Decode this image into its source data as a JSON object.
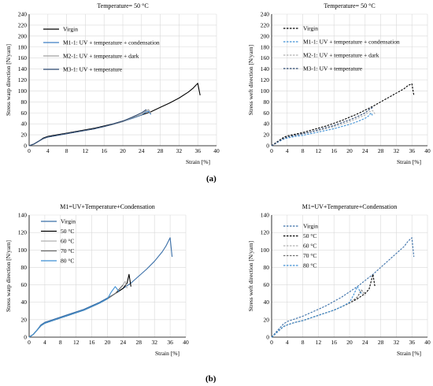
{
  "figure": {
    "label_a": "(a)",
    "label_b": "(b)"
  },
  "chart_data": [
    {
      "type": "line",
      "title": "Temperature=  50 °C",
      "xlabel": "Strain  [%]",
      "ylabel": "Stress  warp direction [N/yarn]",
      "xlim": [
        0,
        40
      ],
      "ylim": [
        0,
        240
      ],
      "xticks": [
        0,
        4,
        8,
        12,
        16,
        20,
        24,
        28,
        32,
        36,
        40
      ],
      "yticks": [
        0,
        20,
        40,
        60,
        80,
        100,
        120,
        140,
        160,
        180,
        200,
        220,
        240
      ],
      "grid": true,
      "legend_position": "top-left",
      "series": [
        {
          "name": "Virgin",
          "color": "#000000",
          "style": "solid",
          "x": [
            0,
            1,
            2,
            3,
            4,
            6,
            8,
            10,
            12,
            14,
            16,
            18,
            20,
            22,
            24,
            26,
            28,
            30,
            32,
            34,
            35,
            36,
            36.5
          ],
          "y": [
            0,
            3,
            8,
            14,
            17,
            20,
            23,
            26,
            29,
            32,
            36,
            40,
            45,
            50,
            56,
            62,
            70,
            78,
            87,
            98,
            105,
            114,
            92
          ]
        },
        {
          "name": "M1-1: UV + temperature + condensation",
          "color": "#3d7fc4",
          "style": "solid",
          "x": [
            0,
            1,
            2,
            3,
            4,
            6,
            8,
            10,
            12,
            14,
            16,
            18,
            20,
            22,
            24,
            25,
            25.5,
            26
          ],
          "y": [
            0,
            3,
            8,
            13,
            16,
            19,
            22,
            25,
            28,
            31,
            35,
            39,
            44,
            50,
            56,
            62,
            63,
            57
          ]
        },
        {
          "name": "M2-1: UV + temperature + dark",
          "color": "#a0a0a0",
          "style": "solid",
          "x": [
            0,
            1,
            2,
            3,
            4,
            6,
            8,
            10,
            12,
            14,
            16,
            18,
            20,
            22,
            24,
            25,
            25.5,
            26
          ],
          "y": [
            0,
            3,
            8,
            13,
            16,
            19,
            22,
            25,
            28,
            31,
            35,
            39,
            44,
            51,
            57,
            64,
            66,
            59
          ]
        },
        {
          "name": "M3-1: UV + temperature",
          "color": "#2e4a72",
          "style": "solid",
          "x": [
            0,
            1,
            2,
            3,
            4,
            6,
            8,
            10,
            12,
            14,
            16,
            18,
            20,
            22,
            24,
            25
          ],
          "y": [
            0,
            3,
            8,
            13,
            16,
            19,
            22,
            25,
            28,
            31,
            35,
            40,
            45,
            52,
            60,
            66
          ]
        }
      ]
    },
    {
      "type": "line",
      "title": "Temperature=  50 °C",
      "xlabel": "Strain  [%]",
      "ylabel": "Stress  weft direction [N/yarn]",
      "xlim": [
        0,
        40
      ],
      "ylim": [
        0,
        240
      ],
      "xticks": [
        0,
        4,
        8,
        12,
        16,
        20,
        24,
        28,
        32,
        36,
        40
      ],
      "yticks": [
        0,
        20,
        40,
        60,
        80,
        100,
        120,
        140,
        160,
        180,
        200,
        220,
        240
      ],
      "grid": true,
      "legend_position": "top-left",
      "series": [
        {
          "name": "Virgin",
          "color": "#000000",
          "style": "dashed",
          "x": [
            0,
            1,
            2,
            3,
            4,
            6,
            8,
            10,
            12,
            14,
            16,
            18,
            20,
            22,
            24,
            26,
            28,
            30,
            32,
            34,
            35,
            36,
            36.5
          ],
          "y": [
            0,
            5,
            10,
            15,
            18,
            21,
            24,
            28,
            32,
            36,
            41,
            46,
            52,
            58,
            65,
            72,
            80,
            88,
            96,
            104,
            110,
            113,
            92
          ]
        },
        {
          "name": "M1-1: UV + temperature + condensation",
          "color": "#3d8fd4",
          "style": "dashed",
          "x": [
            0,
            1,
            2,
            3,
            4,
            6,
            8,
            10,
            12,
            14,
            16,
            18,
            20,
            22,
            24,
            25,
            25.5,
            26
          ],
          "y": [
            0,
            4,
            8,
            12,
            14,
            17,
            19,
            22,
            25,
            28,
            31,
            35,
            39,
            44,
            50,
            55,
            60,
            54
          ]
        },
        {
          "name": "M2-1: UV + temperature + dark",
          "color": "#b0b0b0",
          "style": "dashed",
          "x": [
            0,
            1,
            2,
            3,
            4,
            6,
            8,
            10,
            12,
            14,
            16,
            18,
            20,
            22,
            24,
            25,
            26,
            26.5
          ],
          "y": [
            0,
            4,
            9,
            13,
            16,
            19,
            22,
            25,
            28,
            31,
            35,
            39,
            44,
            50,
            56,
            62,
            64,
            58
          ]
        },
        {
          "name": "M3-1: UV + temperature",
          "color": "#2e4a72",
          "style": "dashed",
          "x": [
            0,
            1,
            2,
            3,
            4,
            6,
            8,
            10,
            12,
            14,
            16,
            18,
            20,
            22,
            24,
            25,
            26
          ],
          "y": [
            0,
            4,
            9,
            13,
            16,
            19,
            22,
            25,
            29,
            33,
            37,
            42,
            47,
            53,
            60,
            66,
            70
          ]
        }
      ]
    },
    {
      "type": "line",
      "title": "M1=UV+Temperature+Condensation",
      "xlabel": "Strain  [%]",
      "ylabel": "Stress  warp direction [N/yarn]",
      "xlim": [
        0,
        40
      ],
      "ylim": [
        0,
        140
      ],
      "xticks": [
        0,
        4,
        8,
        12,
        16,
        20,
        24,
        28,
        32,
        36,
        40
      ],
      "yticks": [
        0,
        20,
        40,
        60,
        80,
        100,
        120,
        140
      ],
      "grid": true,
      "legend_position": "top-left",
      "series": [
        {
          "name": "Virgin",
          "color": "#3a6fa8",
          "style": "solid",
          "x": [
            0,
            1,
            2,
            3,
            4,
            6,
            8,
            10,
            12,
            14,
            16,
            18,
            20,
            22,
            24,
            26,
            28,
            30,
            32,
            34,
            35,
            36,
            36.5
          ],
          "y": [
            0,
            3,
            8,
            14,
            17,
            20,
            23,
            26,
            29,
            32,
            36,
            40,
            45,
            50,
            56,
            62,
            70,
            78,
            87,
            98,
            105,
            114,
            92
          ]
        },
        {
          "name": "50 °C",
          "color": "#000000",
          "style": "solid",
          "x": [
            0,
            1,
            2,
            3,
            4,
            6,
            8,
            10,
            12,
            14,
            16,
            18,
            20,
            22,
            24,
            25,
            25.5,
            26
          ],
          "y": [
            0,
            3,
            8,
            13,
            16,
            19,
            22,
            25,
            28,
            31,
            35,
            39,
            44,
            50,
            56,
            62,
            72,
            58
          ]
        },
        {
          "name": "60 °C",
          "color": "#b0b0b0",
          "style": "solid",
          "x": [
            0,
            1,
            2,
            3,
            4,
            6,
            8,
            10,
            12,
            14,
            16,
            18,
            20,
            22,
            23,
            24,
            24.5,
            25
          ],
          "y": [
            0,
            3,
            8,
            13,
            16,
            19,
            22,
            25,
            28,
            31,
            35,
            39,
            44,
            50,
            55,
            60,
            64,
            56
          ]
        },
        {
          "name": "70 °C",
          "color": "#6e6e6e",
          "style": "solid",
          "x": [
            0,
            1,
            2,
            3,
            4,
            6,
            8,
            10,
            12,
            14,
            16,
            18,
            20,
            22,
            23,
            24
          ],
          "y": [
            0,
            3,
            8,
            13,
            16,
            19,
            22,
            25,
            28,
            31,
            35,
            39,
            44,
            50,
            55,
            60
          ]
        },
        {
          "name": "80 °C",
          "color": "#3d8fd4",
          "style": "solid",
          "x": [
            0,
            1,
            2,
            3,
            4,
            6,
            8,
            10,
            12,
            14,
            16,
            18,
            20,
            21,
            22,
            23
          ],
          "y": [
            0,
            3,
            8,
            13,
            16,
            19,
            22,
            25,
            28,
            31,
            35,
            39,
            44,
            52,
            58,
            52
          ]
        }
      ]
    },
    {
      "type": "line",
      "title": "M1=UV+Temperature+Condensation",
      "xlabel": "Strain  [%]",
      "ylabel": "Stress  weft direction [N/yarn]",
      "xlim": [
        0,
        40
      ],
      "ylim": [
        0,
        140
      ],
      "xticks": [
        0,
        4,
        8,
        12,
        16,
        20,
        24,
        28,
        32,
        36,
        40
      ],
      "yticks": [
        0,
        20,
        40,
        60,
        80,
        100,
        120,
        140
      ],
      "grid": true,
      "legend_position": "top-left",
      "series": [
        {
          "name": "Virgin",
          "color": "#3a6fa8",
          "style": "dashed",
          "x": [
            0,
            1,
            2,
            3,
            4,
            6,
            8,
            10,
            12,
            14,
            16,
            18,
            20,
            22,
            24,
            26,
            28,
            30,
            32,
            34,
            35,
            36,
            36.5
          ],
          "y": [
            0,
            5,
            10,
            15,
            18,
            21,
            24,
            28,
            32,
            36,
            41,
            46,
            52,
            58,
            65,
            72,
            80,
            88,
            96,
            104,
            110,
            114,
            92
          ]
        },
        {
          "name": "50 °C",
          "color": "#000000",
          "style": "dashed",
          "x": [
            0,
            1,
            2,
            3,
            4,
            6,
            8,
            10,
            12,
            14,
            16,
            18,
            20,
            22,
            24,
            25,
            26,
            26.5
          ],
          "y": [
            0,
            4,
            8,
            12,
            14,
            17,
            19,
            22,
            25,
            28,
            31,
            35,
            39,
            44,
            50,
            55,
            72,
            58
          ]
        },
        {
          "name": "60 °C",
          "color": "#b0b0b0",
          "style": "dashed",
          "x": [
            0,
            1,
            2,
            3,
            4,
            6,
            8,
            10,
            12,
            14,
            16,
            18,
            20,
            22,
            23,
            24
          ],
          "y": [
            0,
            4,
            8,
            12,
            14,
            17,
            19,
            22,
            25,
            28,
            31,
            35,
            39,
            46,
            52,
            48
          ]
        },
        {
          "name": "70 °C",
          "color": "#6e6e6e",
          "style": "dashed",
          "x": [
            0,
            1,
            2,
            3,
            4,
            6,
            8,
            10,
            12,
            14,
            16,
            18,
            20,
            22,
            23,
            24
          ],
          "y": [
            0,
            4,
            8,
            12,
            14,
            17,
            19,
            22,
            25,
            28,
            31,
            35,
            39,
            46,
            54,
            50
          ]
        },
        {
          "name": "80 °C",
          "color": "#3d8fd4",
          "style": "dashed",
          "x": [
            0,
            1,
            2,
            3,
            4,
            6,
            8,
            10,
            12,
            14,
            16,
            18,
            20,
            21,
            22,
            23
          ],
          "y": [
            0,
            4,
            8,
            12,
            14,
            17,
            19,
            22,
            25,
            28,
            31,
            35,
            40,
            48,
            58,
            50
          ]
        }
      ]
    }
  ]
}
